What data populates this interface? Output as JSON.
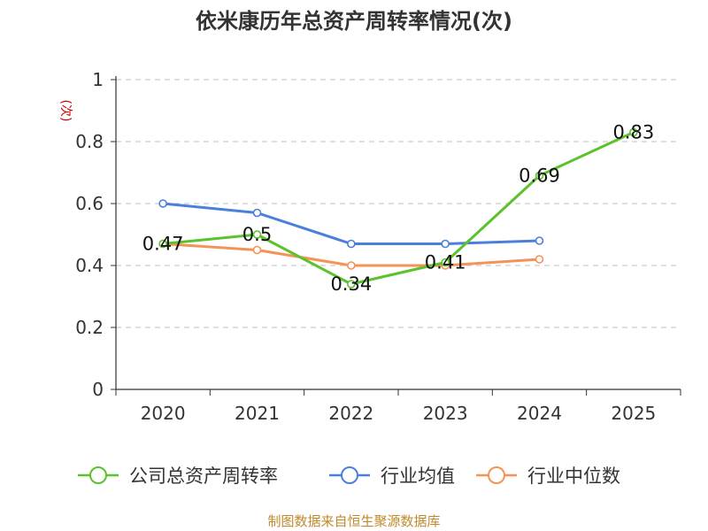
{
  "chart_data": {
    "type": "line",
    "title": "依米康历年总资产周转率情况(次)",
    "ylabel": "(次)",
    "x": [
      "2020",
      "2021",
      "2022",
      "2023",
      "2024",
      "2025"
    ],
    "ylim": [
      0,
      1
    ],
    "yticks": [
      "0",
      "0.2",
      "0.4",
      "0.6",
      "0.8",
      "1"
    ],
    "grid": true,
    "legend_position": "bottom",
    "series": [
      {
        "name": "公司总资产周转率",
        "color": "#5bc22e",
        "values": [
          0.47,
          0.5,
          0.34,
          0.41,
          0.69,
          0.83
        ],
        "labels": [
          "0.47",
          "0.5",
          "0.34",
          "0.41",
          "0.69",
          "0.83"
        ]
      },
      {
        "name": "行业均值",
        "color": "#4a7fdc",
        "values": [
          0.6,
          0.57,
          0.47,
          0.47,
          0.48,
          null
        ]
      },
      {
        "name": "行业中位数",
        "color": "#f59357",
        "values": [
          0.47,
          0.45,
          0.4,
          0.4,
          0.42,
          null
        ]
      }
    ]
  },
  "source_text": "制图数据来自恒生聚源数据库",
  "colors": {
    "ylabel": "#cc0000",
    "axis": "#333333",
    "grid": "#cccccc"
  }
}
